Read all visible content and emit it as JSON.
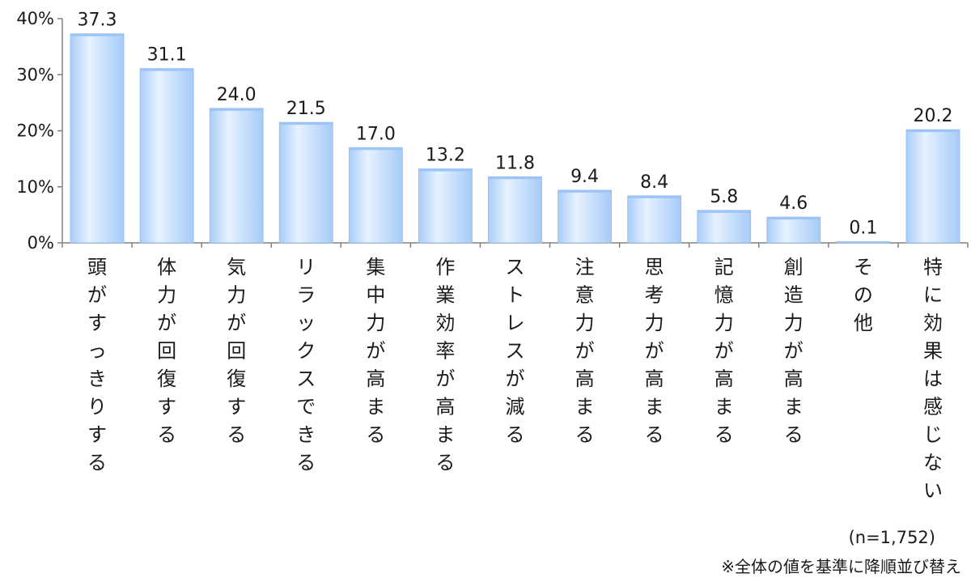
{
  "chart_data": {
    "type": "bar",
    "categories": [
      "頭がすっきりする",
      "体力が回復する",
      "気力が回復する",
      "リラックスできる",
      "集中力が高まる",
      "作業効率が高まる",
      "ストレスが減る",
      "注意力が高まる",
      "思考力が高まる",
      "記憶力が高まる",
      "創造力が高まる",
      "その他",
      "特に効果は感じない"
    ],
    "values": [
      37.3,
      31.1,
      24.0,
      21.5,
      17.0,
      13.2,
      11.8,
      9.4,
      8.4,
      5.8,
      4.6,
      0.1,
      20.2
    ],
    "value_labels": [
      "37.3",
      "31.1",
      "24.0",
      "21.5",
      "17.0",
      "13.2",
      "11.8",
      "9.4",
      "8.4",
      "5.8",
      "4.6",
      "0.1",
      "20.2"
    ],
    "y_ticks": [
      "0%",
      "10%",
      "20%",
      "30%",
      "40%"
    ],
    "ylim": [
      0,
      40
    ],
    "grid": false,
    "bar_color": "#bcd9fb",
    "bar_highlight": "#e3f0fe",
    "title": "",
    "xlabel": "",
    "ylabel": ""
  },
  "footer": {
    "sample_size": "(n=1,752)",
    "sort_note": "※全体の値を基準に降順並び替え"
  }
}
